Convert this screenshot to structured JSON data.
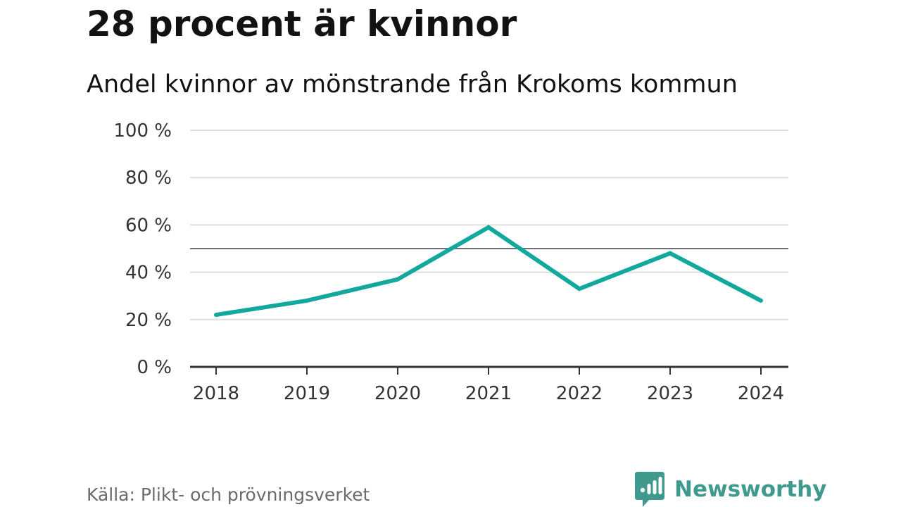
{
  "title": "28 procent är kvinnor",
  "subtitle": "Andel kvinnor av mönstrande från Krokoms kommun",
  "source": "Källa: Plikt- och prövningsverket",
  "brand": {
    "name": "Newsworthy",
    "logo_icon": "newsworthy-chart-bubble-icon",
    "color": "#3f9a8d"
  },
  "chart_data": {
    "type": "line",
    "title": "28 procent är kvinnor",
    "subtitle": "Andel kvinnor av mönstrande från Krokoms kommun",
    "xlabel": "",
    "ylabel": "",
    "categories": [
      "2018",
      "2019",
      "2020",
      "2021",
      "2022",
      "2023",
      "2024"
    ],
    "series": [
      {
        "values": [
          22,
          28,
          37,
          59,
          33,
          48,
          28
        ],
        "color": "#13a89e"
      }
    ],
    "ylim": [
      0,
      100
    ],
    "yticks": [
      0,
      20,
      40,
      60,
      80,
      100
    ],
    "ytick_labels": [
      "0 %",
      "20 %",
      "40 %",
      "60 %",
      "80 %",
      "100 %"
    ],
    "reference_line": {
      "value": 50,
      "color": "#6e6e78"
    },
    "grid": true,
    "grid_color": "#dedede",
    "axis_color": "#333333",
    "legend": "none"
  }
}
